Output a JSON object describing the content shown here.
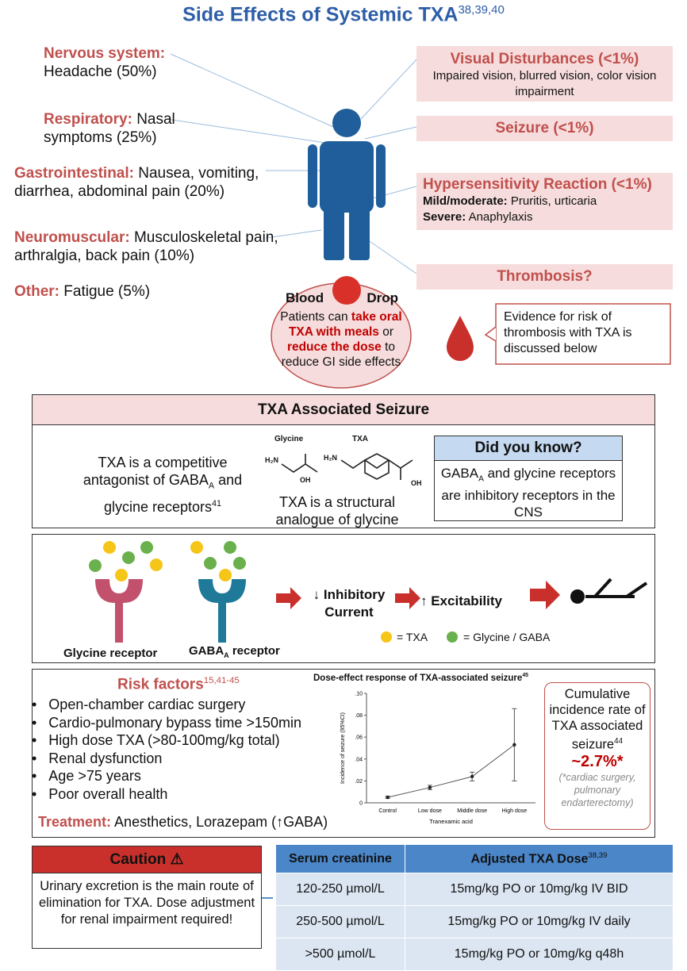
{
  "header": {
    "title": "Side Effects of Systemic TXA",
    "refs": "38,39,40"
  },
  "common_effects": [
    {
      "system": "Nervous system:",
      "effect": "Headache (50%)"
    },
    {
      "system": "Respiratory:",
      "effect": "Nasal symptoms (25%)"
    },
    {
      "system": "Gastrointestinal:",
      "effect": "Nausea, vomiting, diarrhea, abdominal pain (20%)"
    },
    {
      "system": "Neuromuscular:",
      "effect": "Musculoskeletal pain, arthralgia, back pain (10%)"
    },
    {
      "system": "Other:",
      "effect": "Fatigue (5%)"
    }
  ],
  "rare_effects": {
    "visual": {
      "title": "Visual Disturbances (<1%)",
      "detail": "Impaired vision, blurred vision, color vision impairment"
    },
    "seizure": {
      "title": "Seizure (<1%)"
    },
    "hypersensitivity": {
      "title": "Hypersensitivity Reaction (<1%)",
      "items": [
        {
          "label": "Mild/moderate:",
          "text": "Pruritis, urticaria"
        },
        {
          "label": "Severe:",
          "text": "Anaphylaxis"
        }
      ]
    },
    "thrombosis": {
      "title": "Thrombosis?"
    }
  },
  "blood_drop": {
    "title_left": "Blood",
    "title_right": "Drop",
    "tip": [
      "Patients can",
      "take oral TXA with meals",
      "or",
      "reduce the dose",
      "to reduce GI side effects"
    ]
  },
  "evidence_note": "Evidence for risk of thrombosis with TXA is discussed below",
  "seizure_section": {
    "heading": "TXA Associated Seizure",
    "mechanism": {
      "pre": "TXA is a competitive antagonist of GABA",
      "sub": "A",
      "post": "and glycine receptors",
      "ref": "41"
    },
    "structure": {
      "labels": [
        "Glycine",
        "TXA"
      ],
      "atoms": [
        "H₂N",
        "OH",
        "H₂N",
        "OH"
      ],
      "caption": "TXA is a structural analogue of glycine"
    },
    "did_you_know": {
      "title": "Did you know?",
      "pre": "GABA",
      "sub": "A",
      "post": "and glycine receptors are inhibitory receptors in the CNS"
    }
  },
  "pathway": {
    "glycine_receptor": "Glycine receptor",
    "gaba_receptor": {
      "pre": "GABA",
      "sub": "A",
      "post": "receptor"
    },
    "steps": [
      "↓ Inhibitory Current",
      "↑ Excitability"
    ],
    "legend": [
      "= TXA",
      "= Glycine / GABA"
    ]
  },
  "risk": {
    "title": "Risk factors",
    "refs": "15,41-45",
    "items": [
      "Open-chamber cardiac surgery",
      "Cardio-pulmonary bypass time >150min",
      "High dose TXA (>80-100mg/kg total)",
      "Renal dysfunction",
      "Age >75 years",
      "Poor overall health"
    ],
    "treatment_label": "Treatment:",
    "treatment": "Anesthetics, Lorazepam (↑GABA)"
  },
  "dose_chart": {
    "type": "line",
    "title": "Dose-effect response of TXA-associated seizure",
    "title_ref": "45",
    "x_label": "Tranexamic acid",
    "y_label": "Incidence of seizure (95%CI)",
    "categories": [
      "Control",
      "Low dose",
      "Middle dose",
      "High dose"
    ],
    "values": [
      0.005,
      0.014,
      0.024,
      0.053
    ],
    "errors": [
      0.001,
      0.002,
      0.004,
      0.033
    ],
    "ylim": [
      0,
      0.1
    ],
    "yticks": [
      0,
      {
        "value": 0.02,
        "label": ".02"
      },
      {
        "value": 0.04,
        "label": ".04"
      },
      {
        "value": 0.06,
        "label": ".06"
      },
      {
        "value": 0.08,
        "label": ".08"
      },
      {
        "value": 0.1,
        "label": ".10"
      }
    ],
    "color": "#555555"
  },
  "incidence": {
    "text": "Cumulative incidence rate of TXA associated seizure",
    "ref": "44",
    "value": "~2.7%*",
    "note": "(*cardiac surgery, pulmonary endarterectomy)"
  },
  "caution": {
    "title": "Caution",
    "text": "Urinary excretion is the main route of elimination for TXA. Dose adjustment for renal impairment required!"
  },
  "dose_table": {
    "headers": [
      "Serum creatinine",
      "Adjusted TXA Dose"
    ],
    "header_ref": "38,39",
    "rows": [
      [
        "120-250 µmol/L",
        "15mg/kg PO or 10mg/kg IV BID"
      ],
      [
        "250-500 µmol/L",
        "15mg/kg PO or 10mg/kg IV daily"
      ],
      [
        ">500 µmol/L",
        "15mg/kg PO or 10mg/kg q48h"
      ]
    ]
  }
}
